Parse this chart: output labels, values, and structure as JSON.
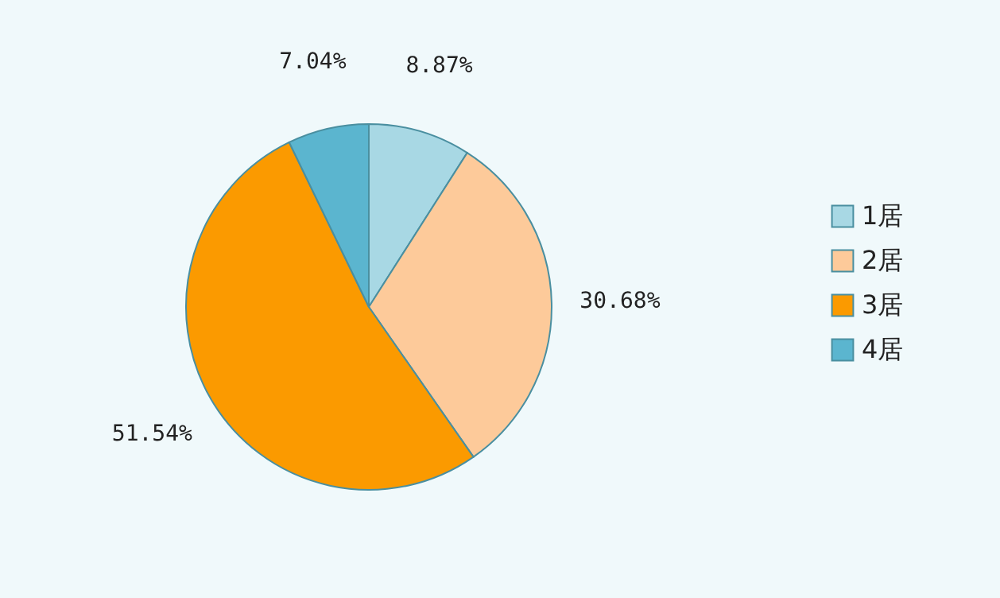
{
  "chart_data": {
    "type": "pie",
    "categories": [
      "1居",
      "2居",
      "3居",
      "4居"
    ],
    "values": [
      8.87,
      30.68,
      51.54,
      7.04
    ],
    "colors": [
      "#a8d8e4",
      "#fdca9a",
      "#fb9a00",
      "#5bb5cf"
    ],
    "value_labels": [
      "8.87%",
      "30.68%",
      "51.54%",
      "7.04%"
    ],
    "legend": "right"
  }
}
